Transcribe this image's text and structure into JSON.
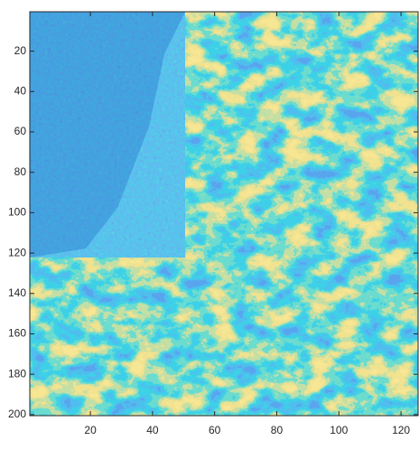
{
  "chart_data": {
    "type": "heatmap",
    "xlim": [
      0.5,
      125.5
    ],
    "ylim": [
      0.5,
      200.5
    ],
    "y_reversed": true,
    "xticks": [
      20,
      40,
      60,
      80,
      100,
      120
    ],
    "yticks": [
      20,
      40,
      60,
      80,
      100,
      120,
      140,
      160,
      180,
      200
    ]
  }
}
